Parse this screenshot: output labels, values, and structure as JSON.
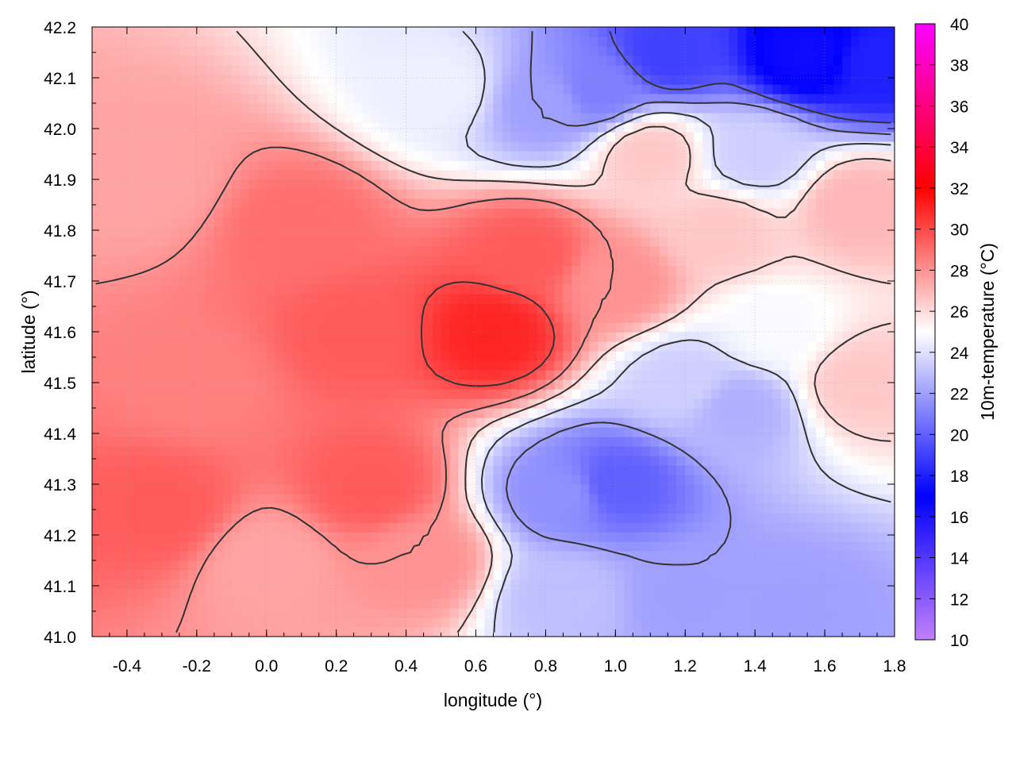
{
  "chart_data": {
    "type": "heatmap",
    "title": "",
    "xlabel": "longitude (°)",
    "ylabel": "latitude (°)",
    "colorbar_label": "10m-temperature (°C)",
    "xlim": [
      -0.5,
      1.8
    ],
    "ylim": [
      41.0,
      42.2
    ],
    "xticks": [
      -0.4,
      -0.2,
      0.0,
      0.2,
      0.4,
      0.6,
      0.8,
      1.0,
      1.2,
      1.4,
      1.6,
      1.8
    ],
    "xtick_labels": [
      "-0.4",
      "-0.2",
      "0.0",
      "0.2",
      "0.4",
      "0.6",
      "0.8",
      "1.0",
      "1.2",
      "1.4",
      "1.6",
      "1.8"
    ],
    "yticks": [
      41.0,
      41.1,
      41.2,
      41.3,
      41.4,
      41.5,
      41.6,
      41.7,
      41.8,
      41.9,
      42.0,
      42.1,
      42.2
    ],
    "ytick_labels": [
      "41.0",
      "41.1",
      "41.2",
      "41.3",
      "41.4",
      "41.5",
      "41.6",
      "41.7",
      "41.8",
      "41.9",
      "42.0",
      "42.1",
      "42.2"
    ],
    "colorbar_range": [
      10,
      40
    ],
    "colorbar_ticks": [
      10,
      12,
      14,
      16,
      18,
      20,
      22,
      24,
      26,
      28,
      30,
      32,
      34,
      36,
      38,
      40
    ],
    "colorbar_tick_labels": [
      "10",
      "12",
      "14",
      "16",
      "18",
      "20",
      "22",
      "24",
      "26",
      "28",
      "30",
      "32",
      "34",
      "36",
      "38",
      "40"
    ],
    "colormap": [
      {
        "value": 10,
        "color": "#c080ff"
      },
      {
        "value": 17,
        "color": "#0000ff"
      },
      {
        "value": 25,
        "color": "#ffffff"
      },
      {
        "value": 32,
        "color": "#ff0000"
      },
      {
        "value": 40,
        "color": "#ff00ff"
      }
    ],
    "grid": true,
    "contour_color": "#333333",
    "field_samples": [
      {
        "lon": -0.35,
        "lat": 41.9,
        "t": 27.5
      },
      {
        "lon": -0.2,
        "lat": 41.5,
        "t": 28.5
      },
      {
        "lon": -0.3,
        "lat": 41.25,
        "t": 29.5
      },
      {
        "lon": 0.1,
        "lat": 41.8,
        "t": 29.0
      },
      {
        "lon": 0.25,
        "lat": 41.6,
        "t": 29.5
      },
      {
        "lon": 0.65,
        "lat": 41.6,
        "t": 31.0
      },
      {
        "lon": 0.75,
        "lat": 41.75,
        "t": 29.5
      },
      {
        "lon": 0.3,
        "lat": 41.3,
        "t": 29.5
      },
      {
        "lon": 0.45,
        "lat": 41.15,
        "t": 28.0
      },
      {
        "lon": 0.0,
        "lat": 41.15,
        "t": 27.5
      },
      {
        "lon": 0.8,
        "lat": 42.05,
        "t": 22.0
      },
      {
        "lon": 0.95,
        "lat": 42.08,
        "t": 21.0
      },
      {
        "lon": 0.5,
        "lat": 42.08,
        "t": 24.5
      },
      {
        "lon": 1.15,
        "lat": 42.15,
        "t": 19.0
      },
      {
        "lon": 1.55,
        "lat": 42.15,
        "t": 16.5
      },
      {
        "lon": 1.75,
        "lat": 42.13,
        "t": 18.0
      },
      {
        "lon": 1.4,
        "lat": 41.95,
        "t": 23.5
      },
      {
        "lon": 1.3,
        "lat": 41.8,
        "t": 26.5
      },
      {
        "lon": 1.45,
        "lat": 41.6,
        "t": 24.8
      },
      {
        "lon": 1.2,
        "lat": 41.5,
        "t": 23.5
      },
      {
        "lon": 1.35,
        "lat": 41.45,
        "t": 22.5
      },
      {
        "lon": 1.0,
        "lat": 41.3,
        "t": 20.0
      },
      {
        "lon": 0.85,
        "lat": 41.28,
        "t": 21.5
      },
      {
        "lon": 0.85,
        "lat": 41.08,
        "t": 23.0
      },
      {
        "lon": 1.5,
        "lat": 41.05,
        "t": 22.0
      },
      {
        "lon": 1.2,
        "lat": 41.08,
        "t": 22.0
      },
      {
        "lon": 1.7,
        "lat": 41.5,
        "t": 26.5
      },
      {
        "lon": 1.7,
        "lat": 41.85,
        "t": 27.0
      },
      {
        "lon": 1.0,
        "lat": 41.7,
        "t": 28.0
      },
      {
        "lon": 1.1,
        "lat": 41.95,
        "t": 26.5
      }
    ]
  }
}
